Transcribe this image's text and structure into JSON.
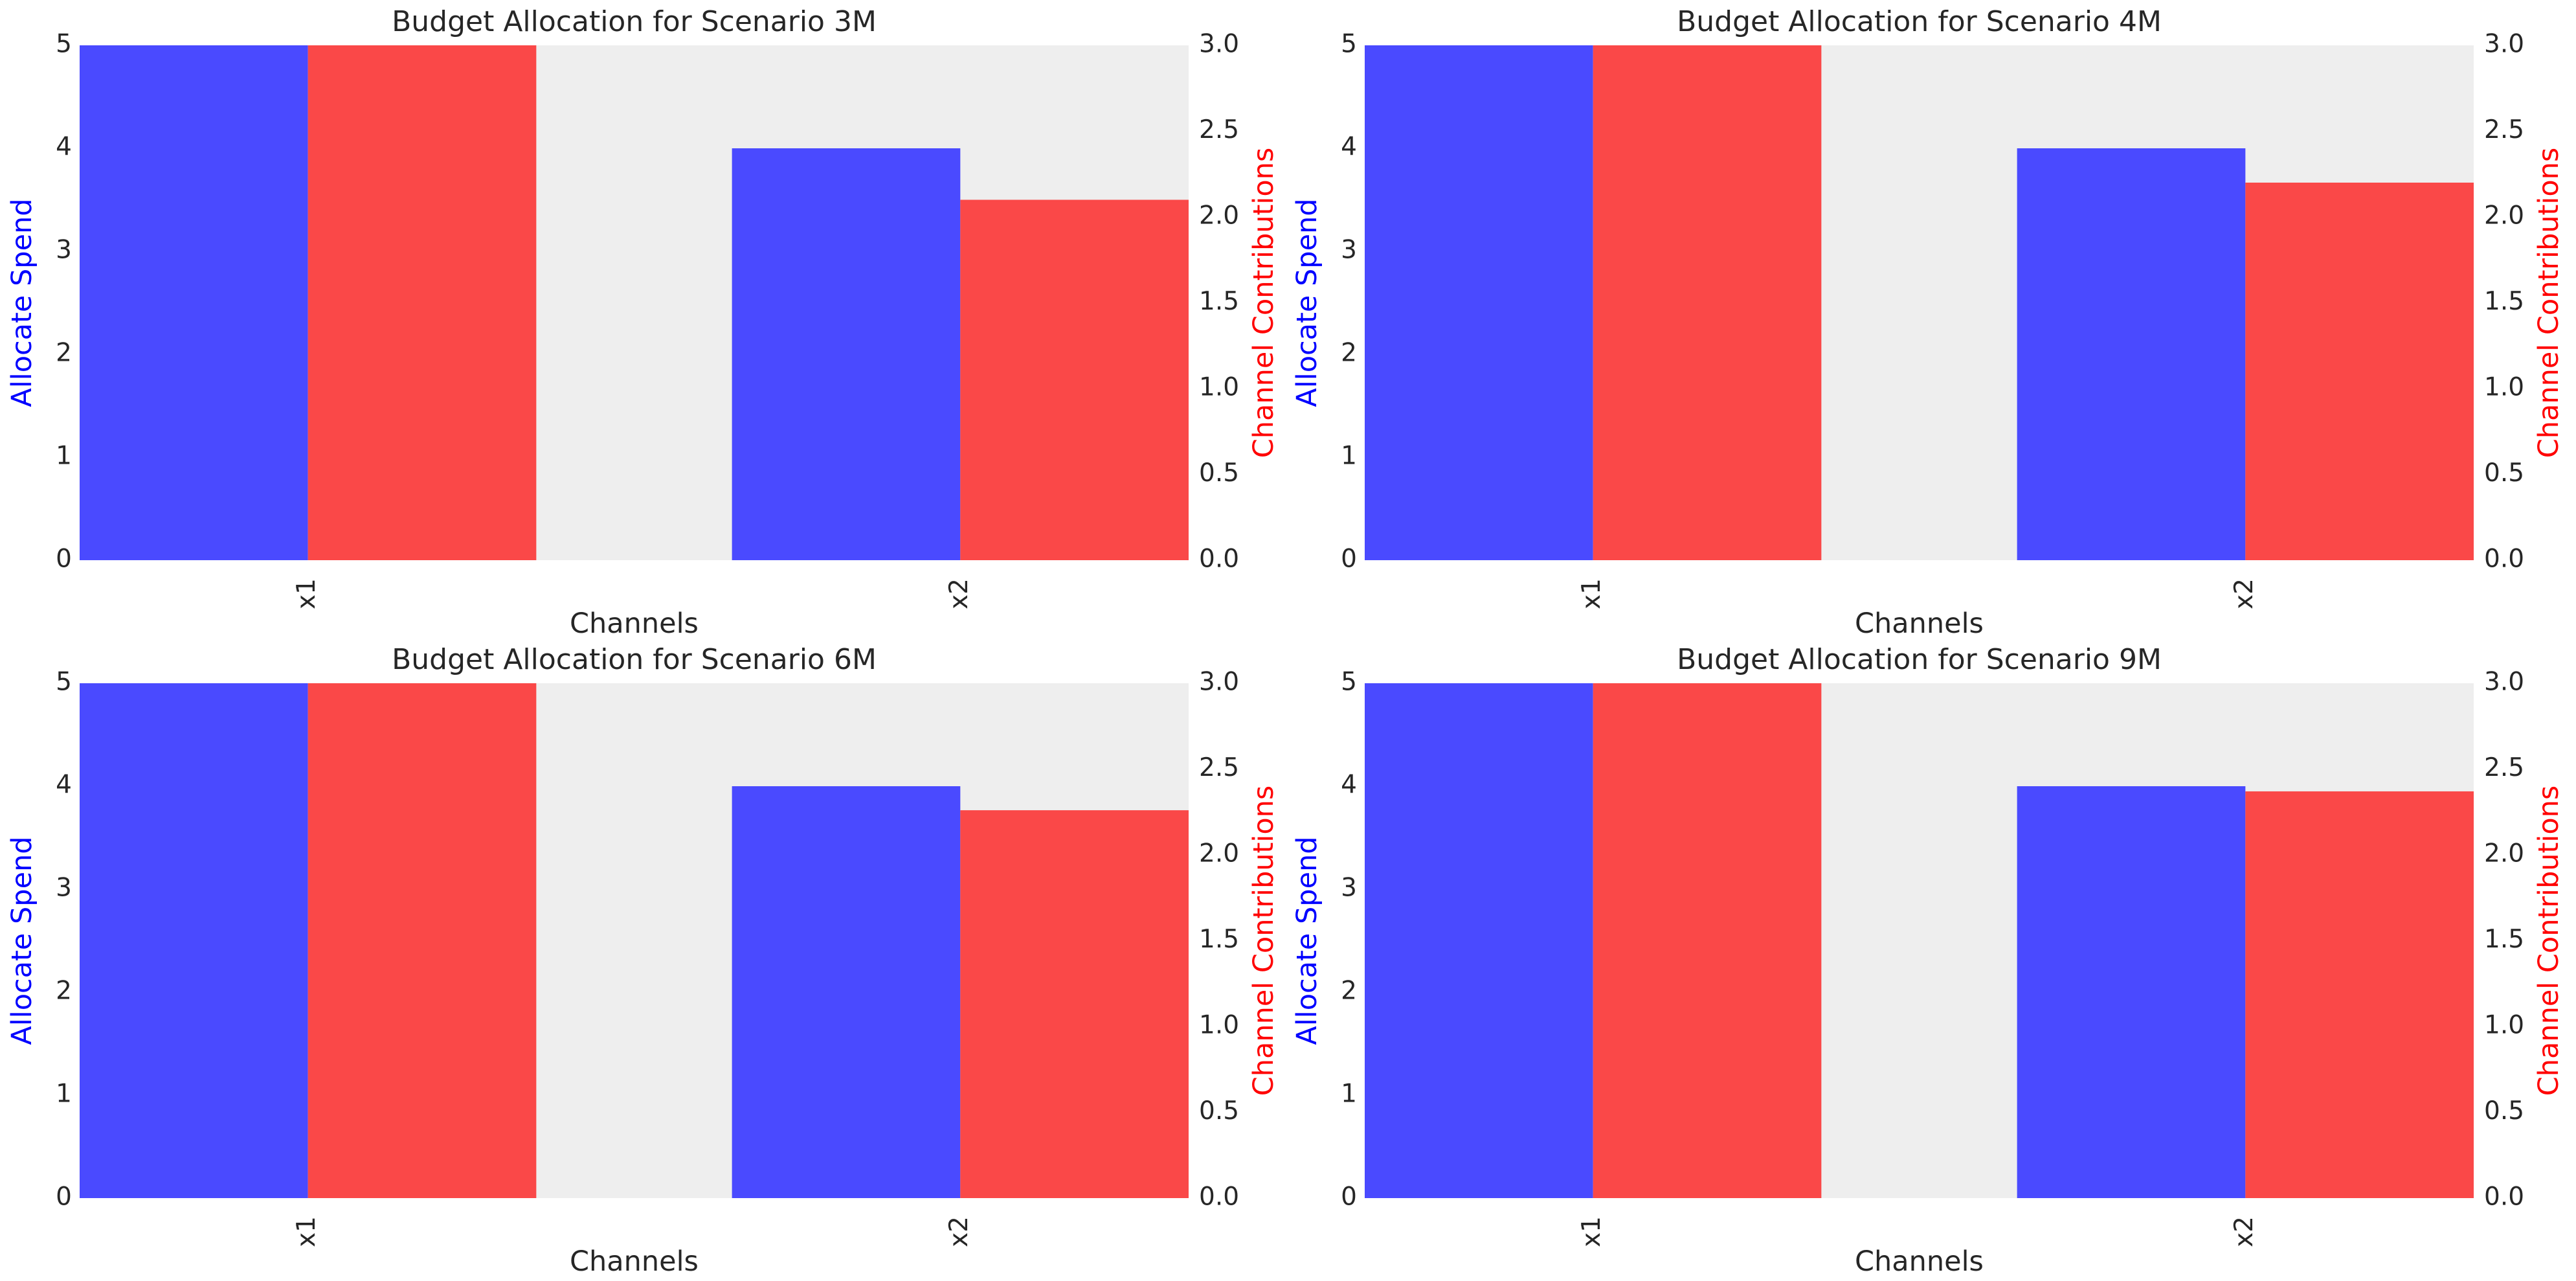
{
  "colors": {
    "spend_bar": "#4a4aff",
    "contribution_bar": "#fa4848",
    "left_axis_label": "#0000ff",
    "right_axis_label": "#ff0000",
    "plot_background": "#eeeeee",
    "text": "#262626"
  },
  "chart_data": [
    {
      "type": "bar",
      "title": "Budget Allocation for Scenario 3M",
      "xlabel": "Channels",
      "ylabel": "Allocate Spend",
      "ylabel_right": "Channel Contributions",
      "categories": [
        "x1",
        "x2"
      ],
      "ylim": [
        0,
        5
      ],
      "ylim_right": [
        0,
        3.0
      ],
      "yticks": [
        "0",
        "1",
        "2",
        "3",
        "4",
        "5"
      ],
      "yticks_right": [
        "0.0",
        "0.5",
        "1.0",
        "1.5",
        "2.0",
        "2.5",
        "3.0"
      ],
      "grid": false,
      "series": [
        {
          "axis": "left",
          "values": [
            5,
            4
          ]
        },
        {
          "axis": "right",
          "values": [
            3.0,
            2.1
          ]
        }
      ]
    },
    {
      "type": "bar",
      "title": "Budget Allocation for Scenario 4M",
      "xlabel": "Channels",
      "ylabel": "Allocate Spend",
      "ylabel_right": "Channel Contributions",
      "categories": [
        "x1",
        "x2"
      ],
      "ylim": [
        0,
        5
      ],
      "ylim_right": [
        0,
        3.0
      ],
      "yticks": [
        "0",
        "1",
        "2",
        "3",
        "4",
        "5"
      ],
      "yticks_right": [
        "0.0",
        "0.5",
        "1.0",
        "1.5",
        "2.0",
        "2.5",
        "3.0"
      ],
      "grid": false,
      "series": [
        {
          "axis": "left",
          "values": [
            5,
            4
          ]
        },
        {
          "axis": "right",
          "values": [
            3.0,
            2.2
          ]
        }
      ]
    },
    {
      "type": "bar",
      "title": "Budget Allocation for Scenario 6M",
      "xlabel": "Channels",
      "ylabel": "Allocate Spend",
      "ylabel_right": "Channel Contributions",
      "categories": [
        "x1",
        "x2"
      ],
      "ylim": [
        0,
        5
      ],
      "ylim_right": [
        0,
        3.0
      ],
      "yticks": [
        "0",
        "1",
        "2",
        "3",
        "4",
        "5"
      ],
      "yticks_right": [
        "0.0",
        "0.5",
        "1.0",
        "1.5",
        "2.0",
        "2.5",
        "3.0"
      ],
      "grid": false,
      "series": [
        {
          "axis": "left",
          "values": [
            5,
            4
          ]
        },
        {
          "axis": "right",
          "values": [
            3.0,
            2.26
          ]
        }
      ]
    },
    {
      "type": "bar",
      "title": "Budget Allocation for Scenario 9M",
      "xlabel": "Channels",
      "ylabel": "Allocate Spend",
      "ylabel_right": "Channel Contributions",
      "categories": [
        "x1",
        "x2"
      ],
      "ylim": [
        0,
        5
      ],
      "ylim_right": [
        0,
        3.0
      ],
      "yticks": [
        "0",
        "1",
        "2",
        "3",
        "4",
        "5"
      ],
      "yticks_right": [
        "0.0",
        "0.5",
        "1.0",
        "1.5",
        "2.0",
        "2.5",
        "3.0"
      ],
      "grid": false,
      "series": [
        {
          "axis": "left",
          "values": [
            5,
            4
          ]
        },
        {
          "axis": "right",
          "values": [
            3.0,
            2.37
          ]
        }
      ]
    }
  ]
}
